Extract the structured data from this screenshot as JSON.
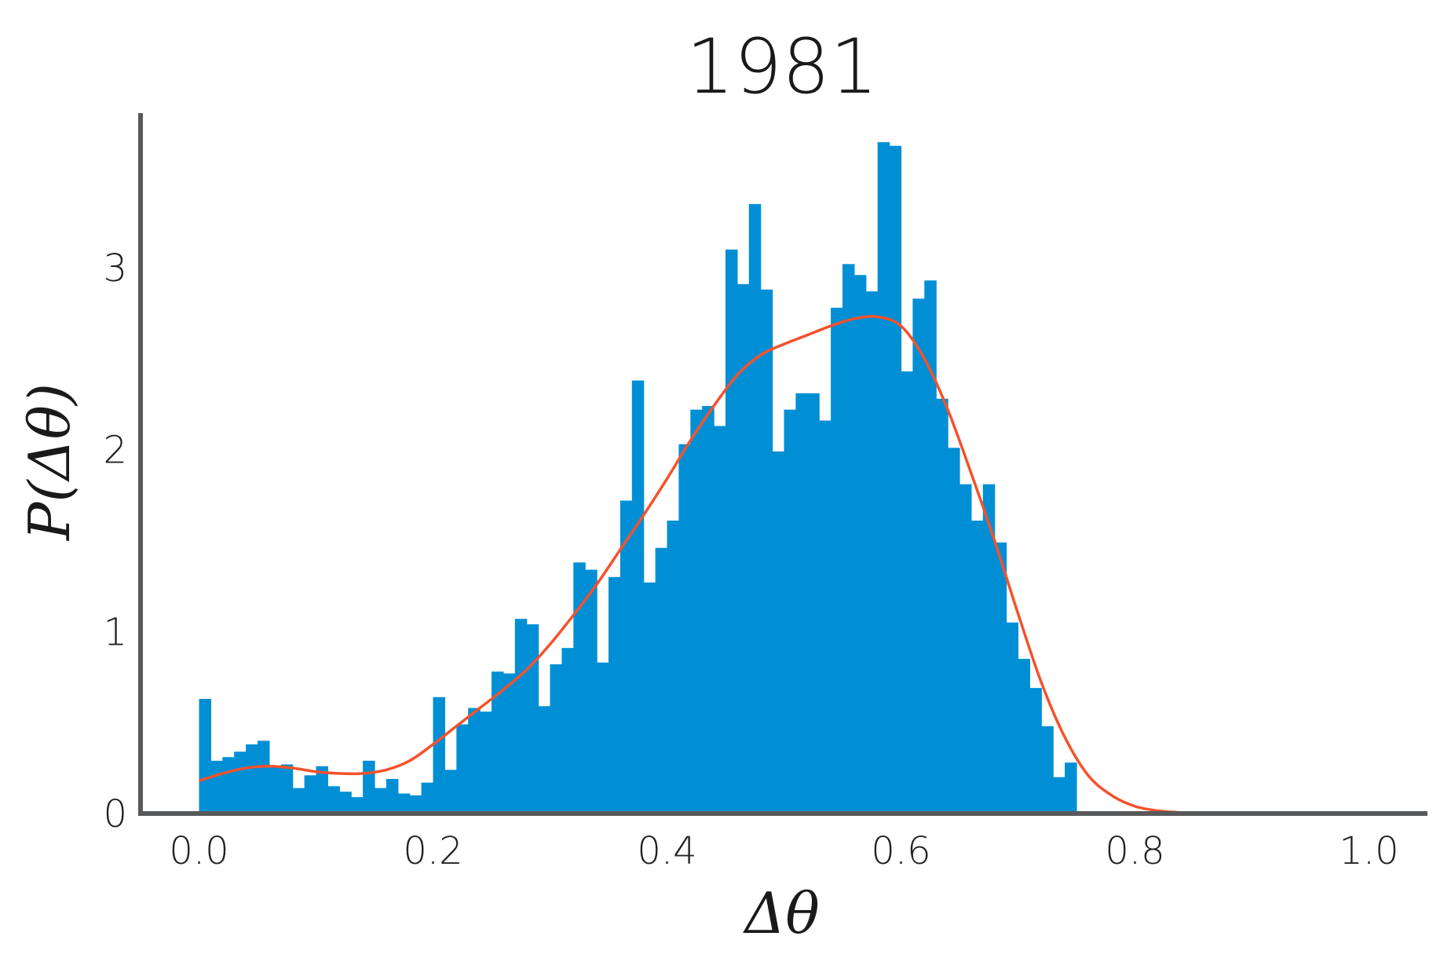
{
  "colors": {
    "bar": "#008fd5",
    "kde": "#f4522c",
    "axis": "#58595b"
  },
  "chart_data": {
    "type": "bar",
    "title": "1981",
    "xlabel": "Δθ",
    "ylabel": "P(Δθ)",
    "xlim": [
      -0.05,
      1.05
    ],
    "ylim": [
      0,
      3.85
    ],
    "grid": false,
    "xticks": [
      "0.0",
      "0.2",
      "0.4",
      "0.6",
      "0.8",
      "1.0"
    ],
    "yticks": [
      "0",
      "1",
      "2",
      "3"
    ],
    "histogram": {
      "bin_start": 0.0,
      "bin_width": 0.01,
      "values": [
        0.63,
        0.29,
        0.31,
        0.34,
        0.38,
        0.4,
        0.26,
        0.27,
        0.14,
        0.21,
        0.26,
        0.15,
        0.12,
        0.09,
        0.29,
        0.14,
        0.19,
        0.11,
        0.1,
        0.17,
        0.64,
        0.24,
        0.49,
        0.58,
        0.56,
        0.78,
        0.77,
        1.07,
        1.04,
        0.59,
        0.82,
        0.91,
        1.38,
        1.34,
        0.83,
        1.3,
        1.72,
        2.38,
        1.27,
        1.46,
        1.61,
        2.03,
        2.22,
        2.24,
        2.13,
        3.1,
        2.91,
        3.35,
        2.88,
        1.99,
        2.22,
        2.31,
        2.31,
        2.16,
        2.78,
        3.02,
        2.96,
        2.87,
        3.69,
        3.67,
        2.43,
        2.83,
        2.93,
        2.28,
        2.01,
        1.81,
        1.61,
        1.81,
        1.49,
        1.05,
        0.85,
        0.69,
        0.48,
        0.2,
        0.28
      ]
    },
    "kde": {
      "x": [
        0.0,
        0.02,
        0.04,
        0.06,
        0.08,
        0.1,
        0.12,
        0.14,
        0.16,
        0.18,
        0.2,
        0.22,
        0.24,
        0.26,
        0.28,
        0.3,
        0.32,
        0.34,
        0.36,
        0.38,
        0.4,
        0.42,
        0.44,
        0.46,
        0.48,
        0.5,
        0.52,
        0.54,
        0.56,
        0.58,
        0.6,
        0.62,
        0.64,
        0.66,
        0.68,
        0.7,
        0.72,
        0.74,
        0.76,
        0.78,
        0.8,
        0.82,
        0.84,
        0.86
      ],
      "y": [
        0.18,
        0.22,
        0.25,
        0.26,
        0.25,
        0.23,
        0.22,
        0.22,
        0.24,
        0.29,
        0.38,
        0.48,
        0.58,
        0.68,
        0.79,
        0.93,
        1.09,
        1.26,
        1.45,
        1.64,
        1.84,
        2.05,
        2.24,
        2.41,
        2.52,
        2.58,
        2.63,
        2.68,
        2.72,
        2.73,
        2.68,
        2.5,
        2.22,
        1.87,
        1.5,
        1.1,
        0.72,
        0.42,
        0.21,
        0.1,
        0.04,
        0.015,
        0.005,
        0.0
      ]
    }
  }
}
